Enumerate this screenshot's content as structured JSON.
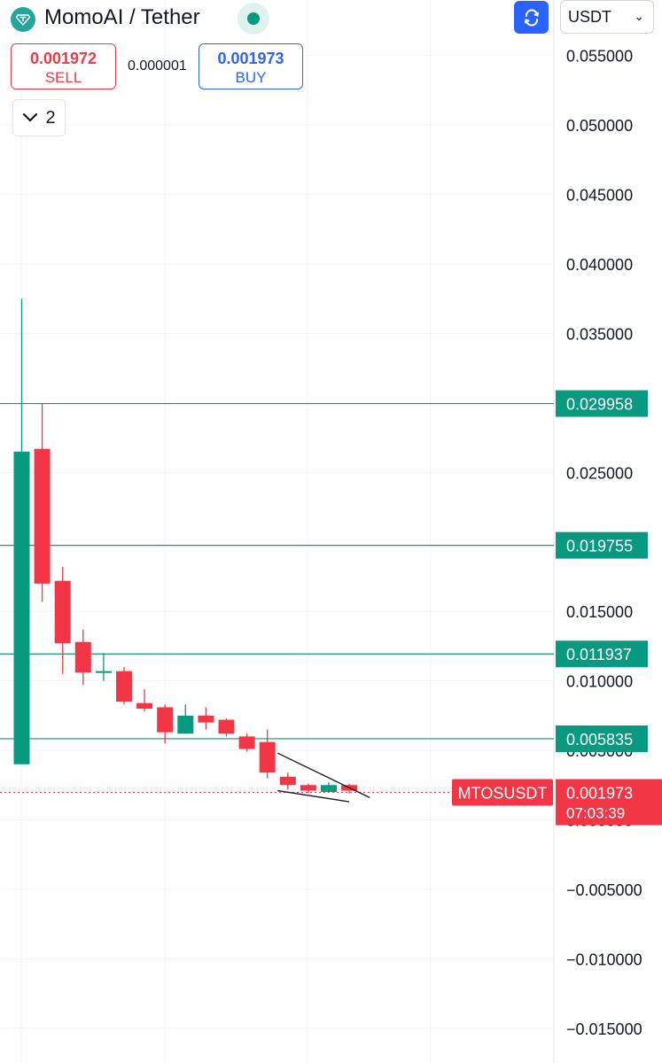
{
  "header": {
    "title": "MomoAI / Tether",
    "currency": "USDT",
    "colors": {
      "logo": "#26a69a",
      "status": "#089981",
      "accent": "#2962ff"
    },
    "icons": {
      "logo": "tether-logo-icon",
      "status": "market-status-icon",
      "compare": "compare-icon",
      "dropdown": "chevron-down-icon"
    }
  },
  "trade": {
    "sell_price": "0.001972",
    "sell_label": "SELL",
    "spread": "0.000001",
    "buy_price": "0.001973",
    "buy_label": "BUY"
  },
  "indicators": {
    "count": "2"
  },
  "chart_data": {
    "type": "candlestick",
    "symbol": "MTOSUSDT",
    "current_price": "0.001973",
    "countdown": "07:03:39",
    "ylim": [
      -0.0175,
      0.059
    ],
    "y_ticks": [
      {
        "value": 0.055,
        "label": "0.055000"
      },
      {
        "value": 0.05,
        "label": "0.050000"
      },
      {
        "value": 0.045,
        "label": "0.045000"
      },
      {
        "value": 0.04,
        "label": "0.040000"
      },
      {
        "value": 0.035,
        "label": "0.035000"
      },
      {
        "value": 0.025,
        "label": "0.025000"
      },
      {
        "value": 0.015,
        "label": "0.015000"
      },
      {
        "value": 0.01,
        "label": "0.010000"
      },
      {
        "value": 0.005,
        "label": "0.005000"
      },
      {
        "value": 0.0,
        "label": "0.000000"
      },
      {
        "value": -0.005,
        "label": "−0.005000"
      },
      {
        "value": -0.01,
        "label": "−0.010000"
      },
      {
        "value": -0.015,
        "label": "−0.015000"
      }
    ],
    "horizontal_lines": [
      {
        "value": 0.029958,
        "label": "0.029958"
      },
      {
        "value": 0.019755,
        "label": "0.019755"
      },
      {
        "value": 0.011937,
        "label": "0.011937"
      },
      {
        "value": 0.005835,
        "label": "0.005835"
      }
    ],
    "candles": [
      {
        "o": 0.004,
        "h": 0.0375,
        "l": 0.004,
        "c": 0.0265
      },
      {
        "o": 0.0267,
        "h": 0.03,
        "l": 0.0157,
        "c": 0.017
      },
      {
        "o": 0.0172,
        "h": 0.0182,
        "l": 0.0105,
        "c": 0.0127
      },
      {
        "o": 0.0128,
        "h": 0.0137,
        "l": 0.0097,
        "c": 0.0106
      },
      {
        "o": 0.0106,
        "h": 0.012,
        "l": 0.01,
        "c": 0.0107
      },
      {
        "o": 0.0107,
        "h": 0.011,
        "l": 0.0083,
        "c": 0.0085
      },
      {
        "o": 0.0084,
        "h": 0.0094,
        "l": 0.0078,
        "c": 0.008
      },
      {
        "o": 0.0081,
        "h": 0.0083,
        "l": 0.0055,
        "c": 0.0063
      },
      {
        "o": 0.0062,
        "h": 0.0083,
        "l": 0.0062,
        "c": 0.0075
      },
      {
        "o": 0.0075,
        "h": 0.0081,
        "l": 0.0065,
        "c": 0.007
      },
      {
        "o": 0.0072,
        "h": 0.0073,
        "l": 0.006,
        "c": 0.0062
      },
      {
        "o": 0.006,
        "h": 0.0062,
        "l": 0.0049,
        "c": 0.0051
      },
      {
        "o": 0.0056,
        "h": 0.0065,
        "l": 0.003,
        "c": 0.0034
      },
      {
        "o": 0.0031,
        "h": 0.0034,
        "l": 0.0022,
        "c": 0.0025
      },
      {
        "o": 0.0025,
        "h": 0.0026,
        "l": 0.0019,
        "c": 0.0021
      },
      {
        "o": 0.002,
        "h": 0.0027,
        "l": 0.002,
        "c": 0.0025
      },
      {
        "o": 0.0025,
        "h": 0.0026,
        "l": 0.0019,
        "c": 0.0021
      }
    ],
    "trendlines": [
      {
        "x1": 12.5,
        "y1": 0.0048,
        "x2": 17.0,
        "y2": 0.0016
      },
      {
        "x1": 12.5,
        "y1": 0.0021,
        "x2": 16.0,
        "y2": 0.0013
      }
    ],
    "grid": true,
    "colors": {
      "up": "#089981",
      "down": "#f23645",
      "level_line": "#089981",
      "price_line": "#f23645"
    }
  }
}
